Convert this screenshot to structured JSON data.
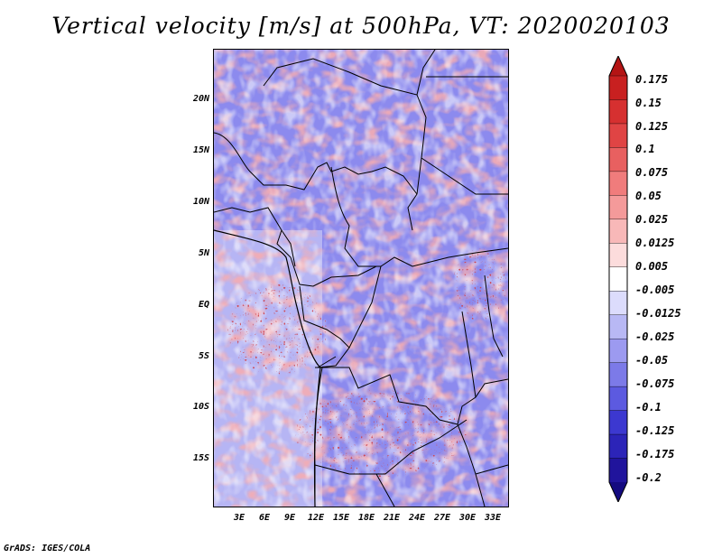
{
  "title": "Vertical velocity [m/s] at 500hPa, VT: 2020020103",
  "map": {
    "latitude_labels": [
      "20N",
      "15N",
      "10N",
      "5N",
      "EQ",
      "5S",
      "10S",
      "15S"
    ],
    "longitude_labels": [
      "3E",
      "6E",
      "9E",
      "12E",
      "15E",
      "18E",
      "21E",
      "24E",
      "27E",
      "30E",
      "33E"
    ],
    "colors": {
      "positive": "#e8706c",
      "negative": "#7b78e8",
      "neutral": "#ffffff",
      "borders": "#000000"
    }
  },
  "colorbar": {
    "labels": [
      "0.175",
      "0.15",
      "0.125",
      "0.1",
      "0.075",
      "0.05",
      "0.025",
      "0.0125",
      "0.005",
      "-0.005",
      "-0.0125",
      "-0.025",
      "-0.05",
      "-0.075",
      "-0.1",
      "-0.125",
      "-0.175",
      "-0.2"
    ],
    "colors": [
      "#b41414",
      "#c82020",
      "#d63030",
      "#e04444",
      "#e86060",
      "#f07c7c",
      "#f49a9a",
      "#f8b8b8",
      "#fcdcdc",
      "#ffffff",
      "#dcdcfc",
      "#b8b8f4",
      "#9c9af0",
      "#7c7ae8",
      "#5c5ae0",
      "#3c38d0",
      "#2c24b8",
      "#20149c",
      "#140a80"
    ]
  },
  "footer": "GrADS: IGES/COLA"
}
